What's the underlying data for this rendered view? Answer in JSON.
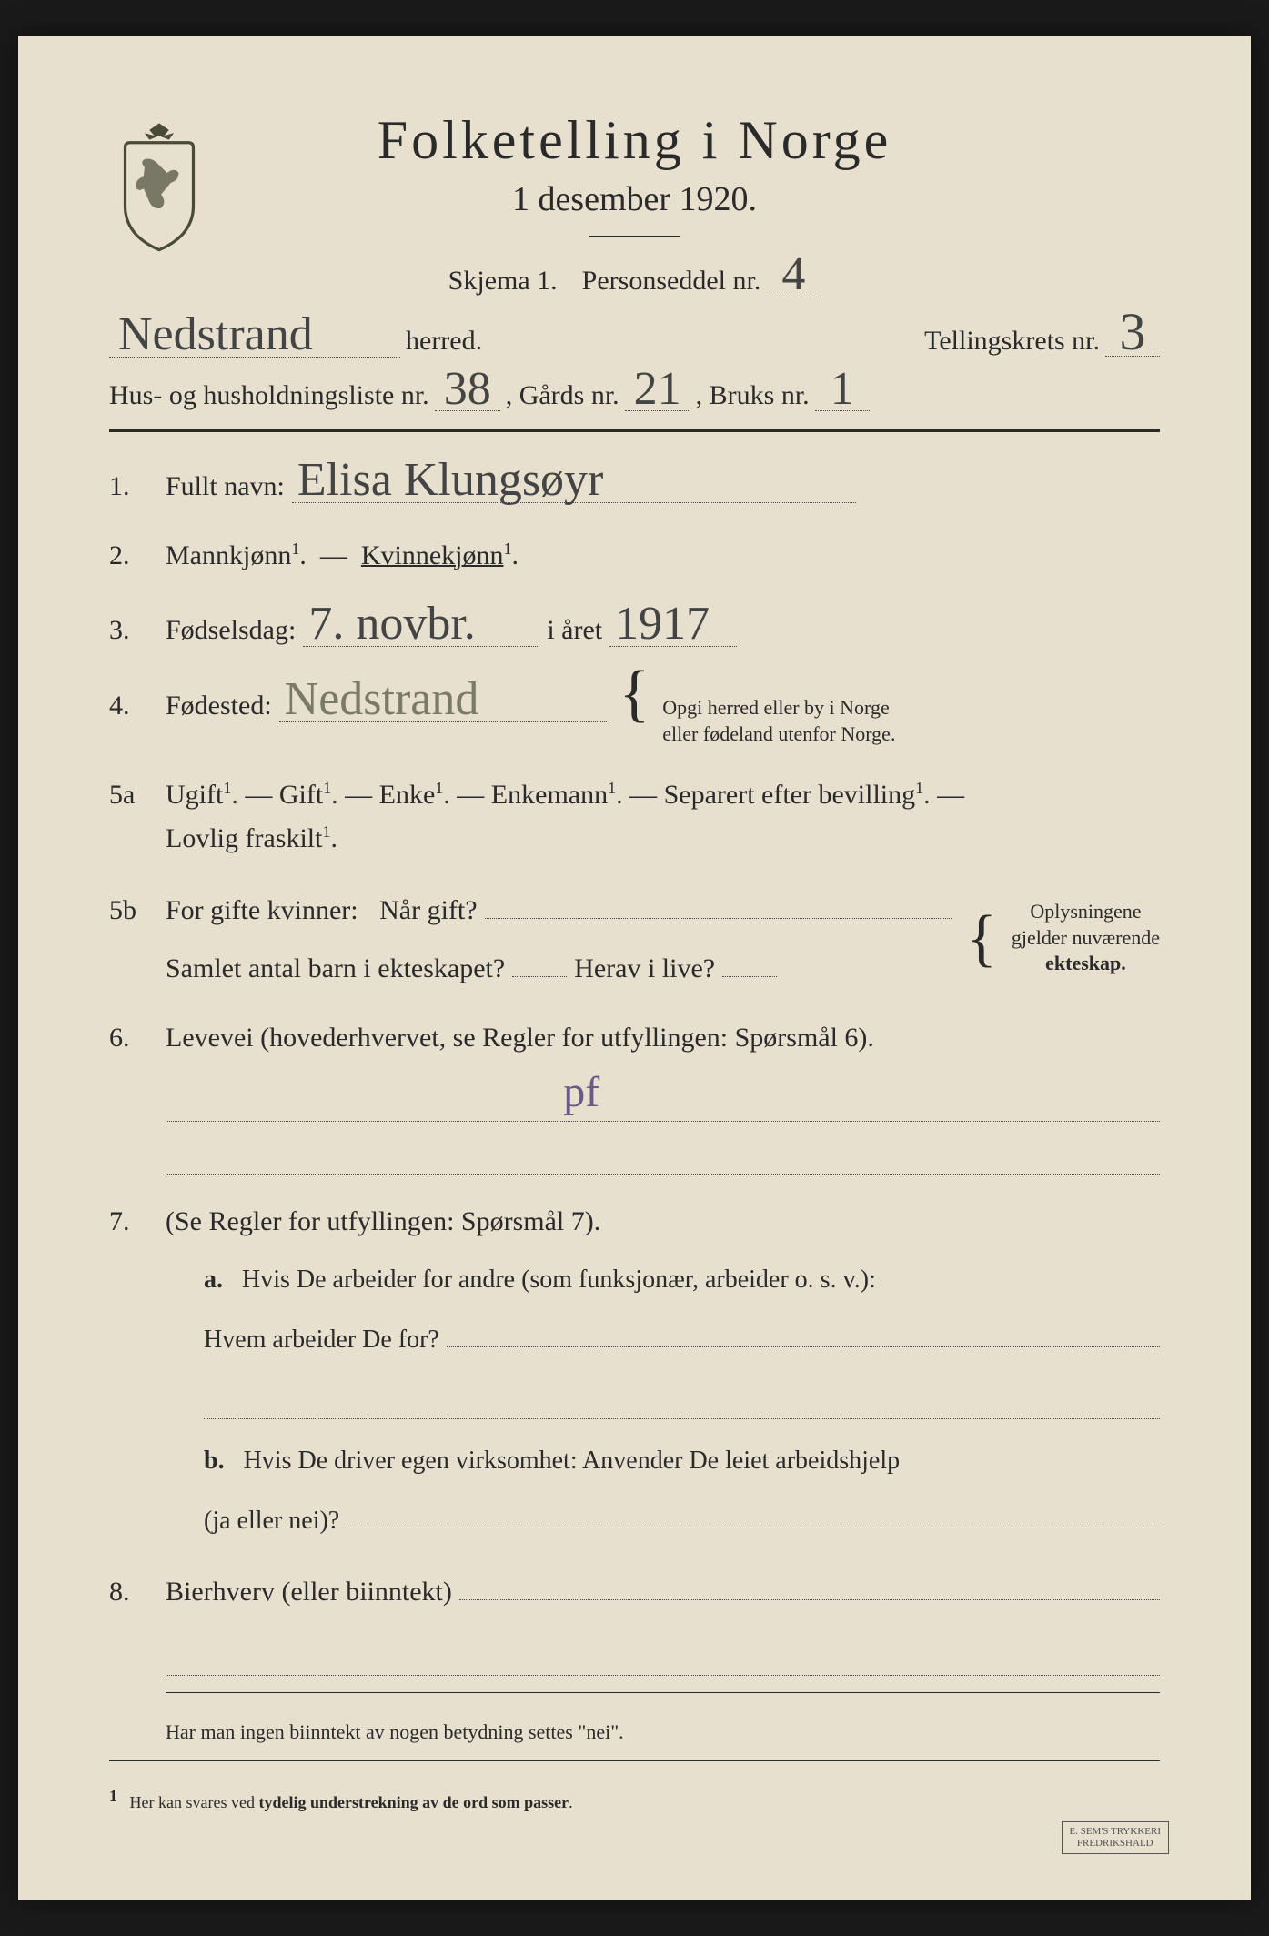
{
  "header": {
    "title": "Folketelling i Norge",
    "subtitle": "1 desember 1920.",
    "skjema_label": "Skjema 1.",
    "personseddel_label": "Personseddel nr.",
    "personseddel_nr": "4",
    "herred_value": "Nedstrand",
    "herred_label": "herred.",
    "tellingskrets_label": "Tellingskrets nr.",
    "tellingskrets_nr": "3",
    "hus_label": "Hus- og husholdningsliste nr.",
    "hus_nr": "38",
    "gards_label": ", Gårds nr.",
    "gards_nr": "21",
    "bruks_label": ", Bruks nr.",
    "bruks_nr": "1"
  },
  "q1": {
    "num": "1.",
    "label": "Fullt navn:",
    "value": "Elisa Klungsøyr"
  },
  "q2": {
    "num": "2.",
    "mann": "Mannkjønn",
    "kvinne": "Kvinnekjønn",
    "sup": "1"
  },
  "q3": {
    "num": "3.",
    "label": "Fødselsdag:",
    "day": "7. novbr.",
    "year_label": "i året",
    "year": "1917"
  },
  "q4": {
    "num": "4.",
    "label": "Fødested:",
    "value": "Nedstrand",
    "note1": "Opgi herred eller by i Norge",
    "note2": "eller fødeland utenfor Norge."
  },
  "q5a": {
    "num": "5a",
    "options": [
      "Ugift",
      "Gift",
      "Enke",
      "Enkemann",
      "Separert efter bevilling",
      "Lovlig fraskilt"
    ],
    "sup": "1"
  },
  "q5b": {
    "num": "5b",
    "line1_a": "For gifte kvinner:",
    "line1_b": "Når gift?",
    "line2_a": "Samlet antal barn i ekteskapet?",
    "line2_b": "Herav i live?",
    "note1": "Oplysningene",
    "note2": "gjelder nuværende",
    "note3": "ekteskap."
  },
  "q6": {
    "num": "6.",
    "text": "Levevei (hovederhvervet, se Regler for utfyllingen: Spørsmål 6).",
    "mark": "pf"
  },
  "q7": {
    "num": "7.",
    "intro": "(Se Regler for utfyllingen: Spørsmål 7).",
    "a_label": "a.",
    "a_text1": "Hvis De arbeider for andre (som funksjonær, arbeider o. s. v.):",
    "a_text2": "Hvem arbeider De for?",
    "b_label": "b.",
    "b_text1": "Hvis De driver egen virksomhet: Anvender De leiet arbeidshjelp",
    "b_text2": "(ja eller nei)?"
  },
  "q8": {
    "num": "8.",
    "label": "Bierhverv (eller biinntekt)"
  },
  "footer": {
    "note1": "Har man ingen biinntekt av nogen betydning settes \"nei\".",
    "note2_num": "1",
    "note2": "Her kan svares ved tydelig understrekning av de ord som passer.",
    "printer1": "E. SEM'S TRYKKERI",
    "printer2": "FREDRIKSHALD"
  },
  "colors": {
    "paper": "#e8e0ce",
    "ink": "#2a2a2a",
    "handwriting": "#444444",
    "pencil": "#6a5a8a"
  }
}
